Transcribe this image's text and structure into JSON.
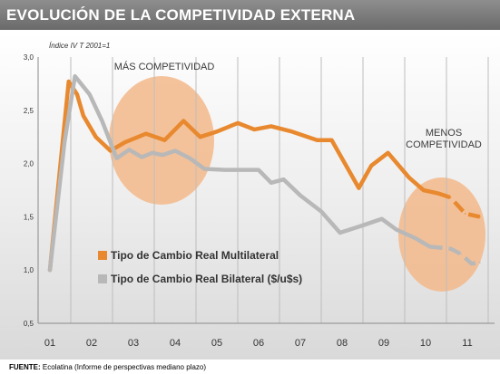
{
  "header": {
    "title": "EVOLUCIÓN DE LA COMPETIVIDAD EXTERNA"
  },
  "footer": {
    "source_label": "FUENTE:",
    "source_text": "Ecolatina (Informe de perspectivas mediano plazo)"
  },
  "colors": {
    "multilateral": "#e8892f",
    "bilateral": "#b8b8b8",
    "ellipse": "#f3b98a",
    "grid": "#bdbdbd"
  },
  "chart_data": {
    "type": "line",
    "index_label": "Índice IV T 2001=1",
    "ylim": [
      0.5,
      3.0
    ],
    "y_ticks": [
      "0,5",
      "1,0",
      "1,5",
      "2,0",
      "2,5",
      "3,0"
    ],
    "y_tick_values": [
      0.5,
      1.0,
      1.5,
      2.0,
      2.5,
      3.0
    ],
    "x_ticks": [
      "01",
      "02",
      "03",
      "04",
      "05",
      "06",
      "07",
      "08",
      "09",
      "10",
      "11"
    ],
    "annotations": {
      "more": "MÁS COMPETIVIDAD",
      "less_line1": "MENOS",
      "less_line2": "COMPETIVIDAD"
    },
    "series": [
      {
        "name": "Tipo de Cambio Real Multilateral",
        "points": [
          [
            2001.0,
            1.0
          ],
          [
            2001.45,
            2.77
          ],
          [
            2001.65,
            2.65
          ],
          [
            2001.8,
            2.45
          ],
          [
            2002.1,
            2.25
          ],
          [
            2002.45,
            2.12
          ],
          [
            2002.8,
            2.2
          ],
          [
            2003.3,
            2.28
          ],
          [
            2003.75,
            2.22
          ],
          [
            2004.2,
            2.4
          ],
          [
            2004.6,
            2.25
          ],
          [
            2005.0,
            2.3
          ],
          [
            2005.5,
            2.38
          ],
          [
            2005.9,
            2.32
          ],
          [
            2006.3,
            2.35
          ],
          [
            2006.8,
            2.3
          ],
          [
            2007.4,
            2.22
          ],
          [
            2007.75,
            2.22
          ],
          [
            2008.4,
            1.77
          ],
          [
            2008.7,
            1.98
          ],
          [
            2009.1,
            2.1
          ],
          [
            2009.6,
            1.87
          ],
          [
            2009.95,
            1.75
          ],
          [
            2010.3,
            1.72
          ],
          [
            2010.6,
            1.68
          ],
          [
            2010.95,
            1.53
          ],
          [
            2011.3,
            1.5
          ]
        ],
        "forecast_from_index": 23
      },
      {
        "name": "Tipo de Cambio Real Bilateral ($/u$s)",
        "points": [
          [
            2001.0,
            1.0
          ],
          [
            2001.35,
            2.2
          ],
          [
            2001.6,
            2.82
          ],
          [
            2001.95,
            2.65
          ],
          [
            2002.25,
            2.4
          ],
          [
            2002.6,
            2.05
          ],
          [
            2002.9,
            2.13
          ],
          [
            2003.2,
            2.06
          ],
          [
            2003.45,
            2.1
          ],
          [
            2003.7,
            2.08
          ],
          [
            2004.0,
            2.12
          ],
          [
            2004.35,
            2.05
          ],
          [
            2004.7,
            1.95
          ],
          [
            2005.2,
            1.94
          ],
          [
            2005.6,
            1.94
          ],
          [
            2006.0,
            1.94
          ],
          [
            2006.3,
            1.82
          ],
          [
            2006.6,
            1.85
          ],
          [
            2007.0,
            1.7
          ],
          [
            2007.5,
            1.55
          ],
          [
            2007.95,
            1.35
          ],
          [
            2008.5,
            1.42
          ],
          [
            2008.95,
            1.48
          ],
          [
            2009.3,
            1.38
          ],
          [
            2009.75,
            1.3
          ],
          [
            2010.1,
            1.22
          ],
          [
            2010.6,
            1.2
          ],
          [
            2010.85,
            1.15
          ],
          [
            2011.1,
            1.06
          ],
          [
            2011.3,
            1.07
          ]
        ],
        "forecast_from_index": 25
      }
    ],
    "legend": {
      "placement": "center-left"
    }
  }
}
